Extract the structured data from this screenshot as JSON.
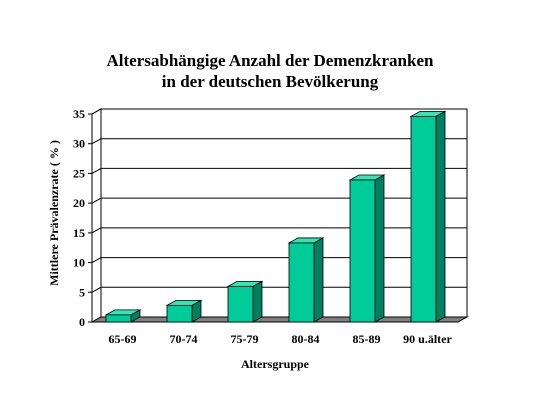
{
  "chart_data": {
    "type": "bar",
    "title_lines": [
      "Altersabhängige Anzahl der Demenzkranken",
      "in der deutschen Bevölkerung"
    ],
    "xlabel": "Altersgruppe",
    "ylabel": "Mittlere Prävalenzrate ( % )",
    "categories": [
      "65-69",
      "70-74",
      "75-79",
      "80-84",
      "85-89",
      "90 u.älter"
    ],
    "values": [
      1.2,
      2.8,
      6.0,
      13.3,
      23.9,
      34.6
    ],
    "ylim": [
      0,
      35
    ],
    "yticks": [
      "0",
      "5",
      "10",
      "15",
      "20",
      "25",
      "30",
      "35"
    ],
    "grid": true,
    "style": "3d",
    "colors": {
      "bar_front": "#00cc99",
      "bar_top": "#33e6b3",
      "bar_side": "#008060",
      "floor": "#808080"
    }
  }
}
